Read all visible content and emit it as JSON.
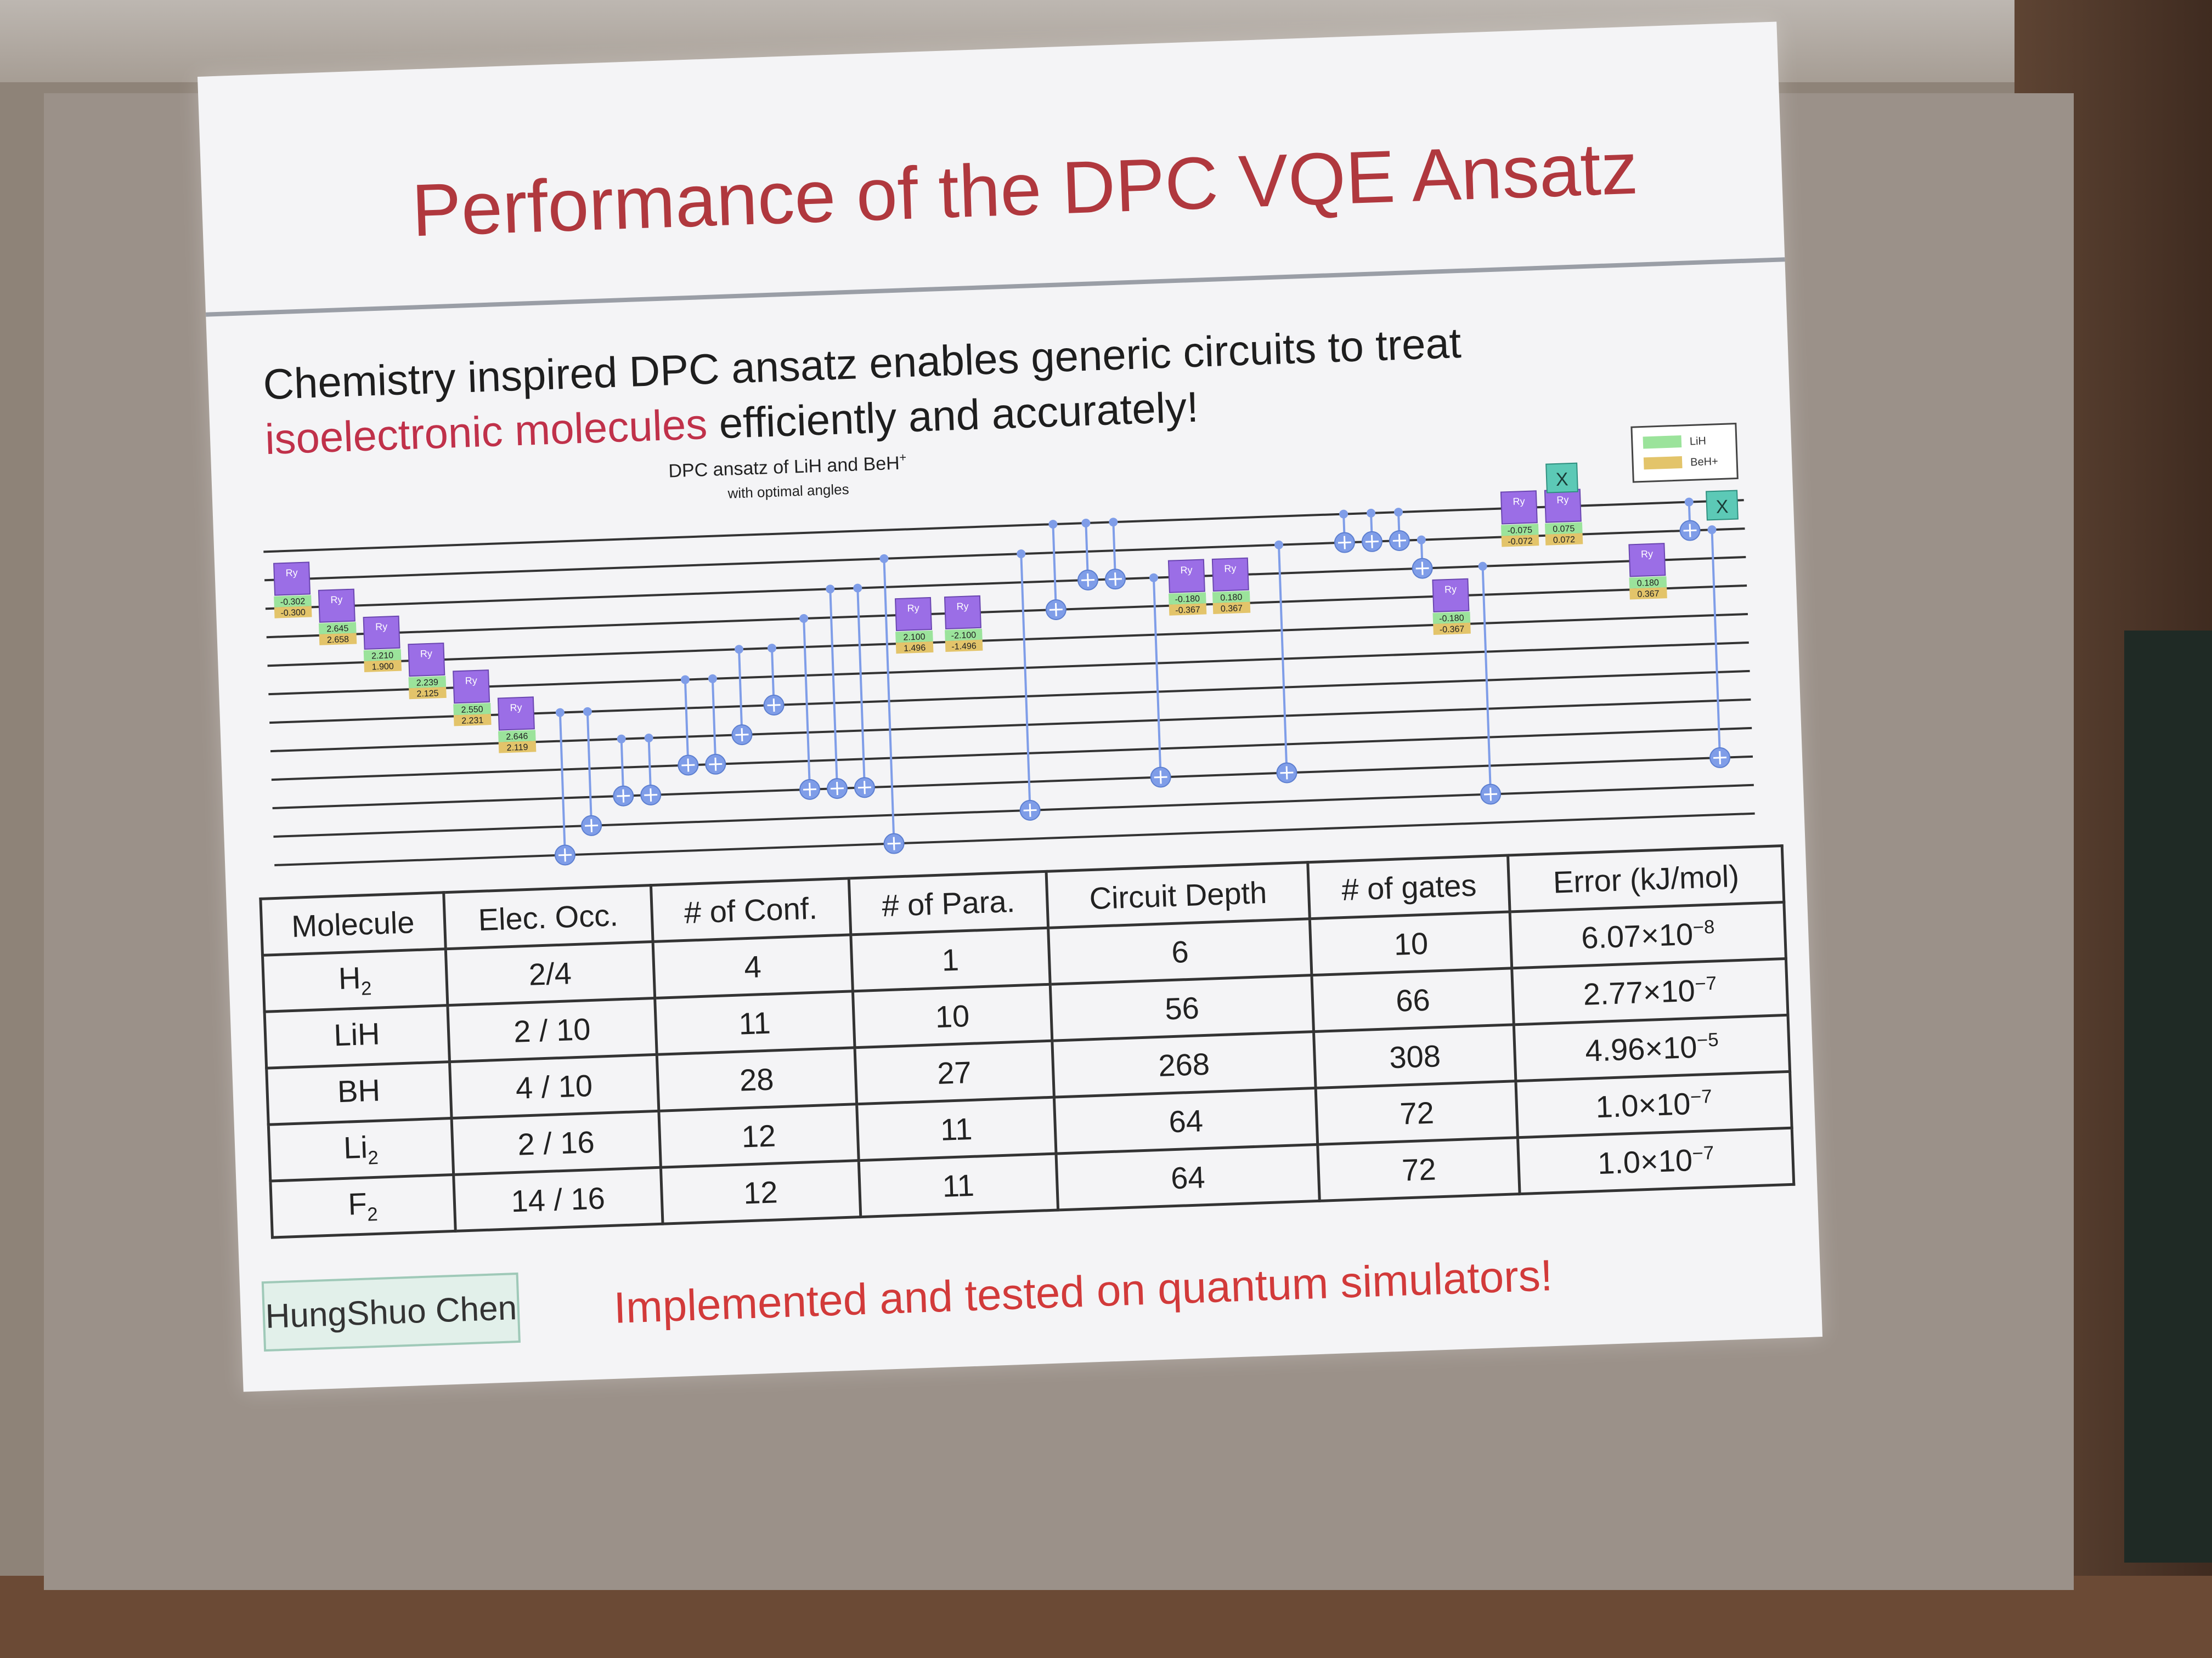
{
  "slide": {
    "title": "Performance of the DPC VQE Ansatz",
    "subtitle_line1": "Chemistry inspired DPC ansatz enables generic circuits to treat",
    "subtitle_highlight": "isoelectronic molecules",
    "subtitle_line2_rest": " efficiently and accurately!",
    "author": "HungShuo Chen",
    "footer": "Implemented and tested on quantum simulators!"
  },
  "circuit": {
    "title": "DPC ansatz of LiH and BeH",
    "title_sup": "+",
    "caption": "with optimal angles",
    "legend": [
      "LiH",
      "BeH+"
    ],
    "legend_colors": [
      "#9be39b",
      "#e3c46a"
    ],
    "gate_label": "Ry",
    "x_label": "X",
    "gate_color": "#9b6ee6",
    "cnot_color": "#7f9de8",
    "ry_gates": [
      {
        "top": "-0.302",
        "bottom": "-0.300"
      },
      {
        "top": "2.645",
        "bottom": "2.658"
      },
      {
        "top": "2.210",
        "bottom": "1.900"
      },
      {
        "top": "2.239",
        "bottom": "2.125"
      },
      {
        "top": "2.550",
        "bottom": "2.231"
      },
      {
        "top": "2.646",
        "bottom": "2.119"
      },
      {
        "top": "2.100",
        "bottom": "1.496"
      },
      {
        "top": "-2.100",
        "bottom": "-1.496"
      },
      {
        "top": "-0.180",
        "bottom": "-0.367"
      },
      {
        "top": "0.180",
        "bottom": "0.367"
      },
      {
        "top": "-0.180",
        "bottom": "-0.367"
      },
      {
        "top": "-0.075",
        "bottom": "-0.072"
      },
      {
        "top": "0.075",
        "bottom": "0.072"
      },
      {
        "top": "0.180",
        "bottom": "0.367"
      }
    ]
  },
  "table": {
    "headers": [
      "Molecule",
      "Elec. Occ.",
      "# of Conf.",
      "# of Para.",
      "Circuit Depth",
      "# of gates",
      "Error (kJ/mol)"
    ],
    "rows": [
      {
        "mol": "H",
        "mol_sub": "2",
        "occ": "2/4",
        "conf": "4",
        "para": "1",
        "depth": "6",
        "gates": "10",
        "err_base": "6.07×10",
        "err_exp": "−8"
      },
      {
        "mol": "LiH",
        "mol_sub": "",
        "occ": "2 / 10",
        "conf": "11",
        "para": "10",
        "depth": "56",
        "gates": "66",
        "err_base": "2.77×10",
        "err_exp": "−7"
      },
      {
        "mol": "BH",
        "mol_sub": "",
        "occ": "4 / 10",
        "conf": "28",
        "para": "27",
        "depth": "268",
        "gates": "308",
        "err_base": "4.96×10",
        "err_exp": "−5"
      },
      {
        "mol": "Li",
        "mol_sub": "2",
        "occ": "2 / 16",
        "conf": "12",
        "para": "11",
        "depth": "64",
        "gates": "72",
        "err_base": "1.0×10",
        "err_exp": "−7"
      },
      {
        "mol": "F",
        "mol_sub": "2",
        "occ": "14 / 16",
        "conf": "12",
        "para": "11",
        "depth": "64",
        "gates": "72",
        "err_base": "1.0×10",
        "err_exp": "−7"
      }
    ]
  }
}
